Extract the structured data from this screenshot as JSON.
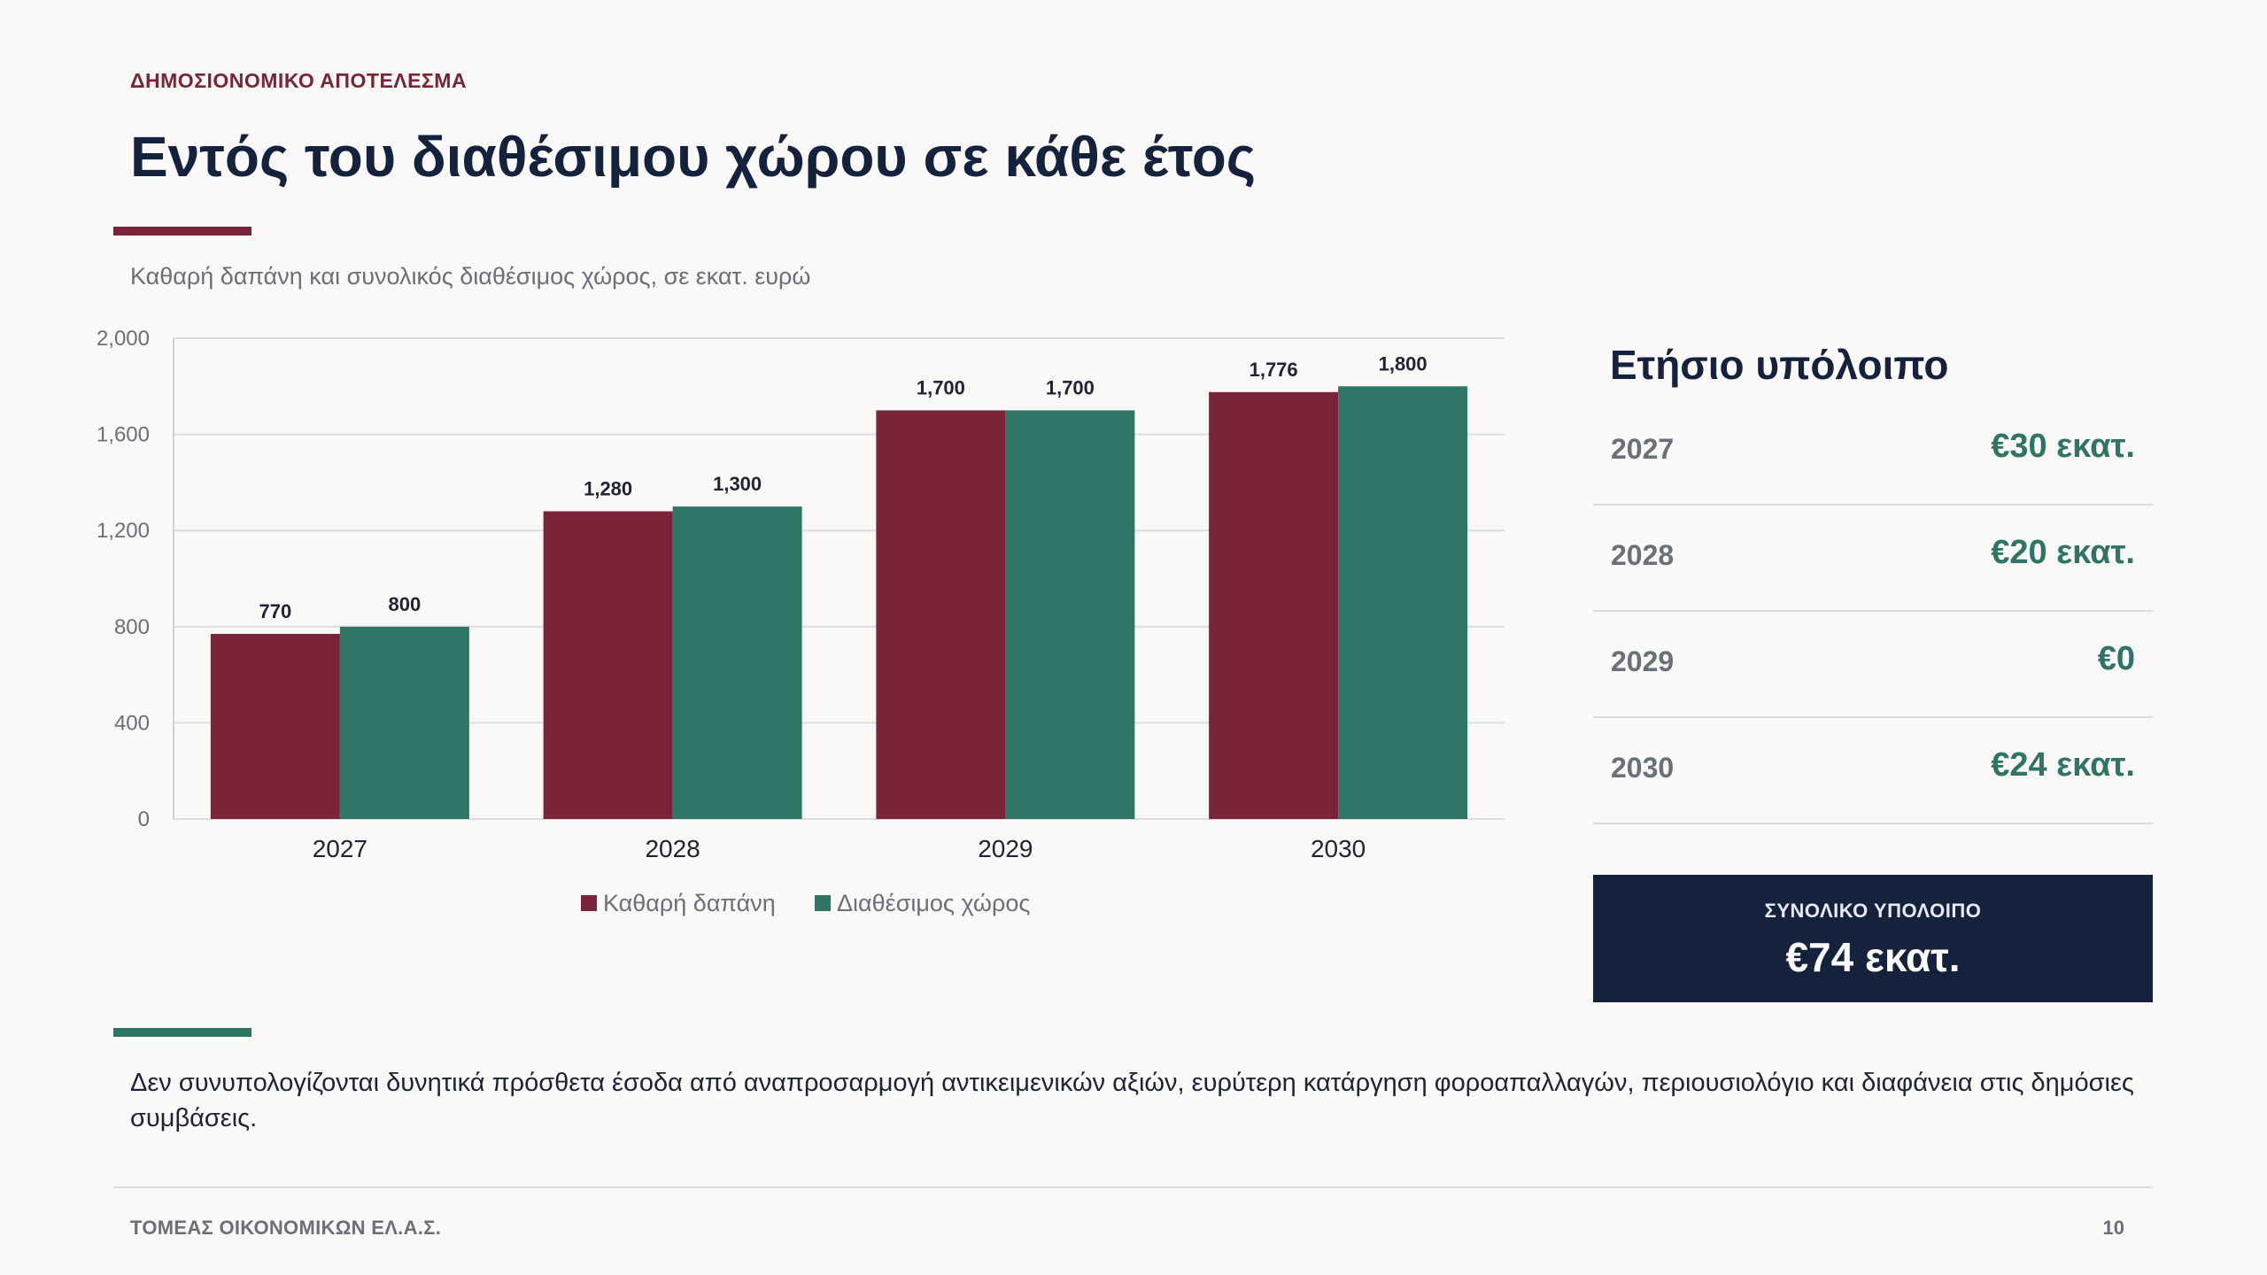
{
  "header": {
    "eyebrow": "ΔΗΜΟΣΙΟΝΟΜΙΚΟ ΑΠΟΤΕΛΕΣΜΑ",
    "title": "Εντός του διαθέσιμου χώρου σε κάθε έτος",
    "subtitle": "Καθαρή δαπάνη και συνολικός διαθέσιμος χώρος, σε εκατ. ευρώ"
  },
  "chart_data": {
    "type": "bar",
    "categories": [
      "2027",
      "2028",
      "2029",
      "2030"
    ],
    "series": [
      {
        "name": "Καθαρή δαπάνη",
        "values": [
          770,
          1280,
          1700,
          1776
        ],
        "color": "#7a2439"
      },
      {
        "name": "Διαθέσιμος χώρος",
        "values": [
          800,
          1300,
          1700,
          1800
        ],
        "color": "#2e7566"
      }
    ],
    "data_labels": [
      [
        "770",
        "1,280",
        "1,700",
        "1,776"
      ],
      [
        "800",
        "1,300",
        "1,700",
        "1,800"
      ]
    ],
    "y_ticks": [
      0,
      400,
      800,
      1200,
      1600,
      2000
    ],
    "y_tick_labels": [
      "0",
      "400",
      "800",
      "1,200",
      "1,600",
      "2,000"
    ],
    "ylim": [
      0,
      2000
    ],
    "grid": true,
    "legend_position": "bottom-center"
  },
  "panel": {
    "title": "Ετήσιο υπόλοιπο",
    "rows": [
      {
        "year": "2027",
        "value": "€30 εκατ.",
        "color": "#2e7566"
      },
      {
        "year": "2028",
        "value": "€20 εκατ.",
        "color": "#2e7566"
      },
      {
        "year": "2029",
        "value": "€0",
        "color": "#2e7566"
      },
      {
        "year": "2030",
        "value": "€24 εκατ.",
        "color": "#2e7566"
      }
    ],
    "total_label": "ΣΥΝΟΛΙΚΟ ΥΠΟΛΟΙΠΟ",
    "total_value": "€74 εκατ."
  },
  "note": "Δεν συνυπολογίζονται δυνητικά πρόσθετα έσοδα από αναπροσαρμογή αντικειμενικών αξιών, ευρύτερη κατάργηση φοροαπαλλαγών, περιουσιολόγιο και διαφάνεια στις δημόσιες συμβάσεις.",
  "footer": {
    "left": "ΤΟΜΕΑΣ ΟΙΚΟΝΟΜΙΚΩΝ ΕΛ.Α.Σ.",
    "page": "10"
  },
  "colors": {
    "accent_red": "#7a2439",
    "accent_green": "#2e7566",
    "navy": "#15223d"
  }
}
